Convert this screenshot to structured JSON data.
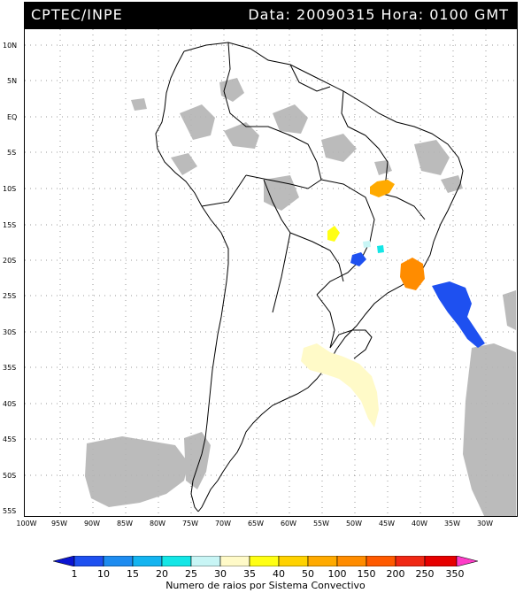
{
  "header": {
    "source": "CPTEC/INPE",
    "datetime": "Data: 20090315 Hora: 0100 GMT"
  },
  "map": {
    "lat_labels": [
      "10N",
      "5N",
      "EQ",
      "5S",
      "10S",
      "15S",
      "20S",
      "25S",
      "30S",
      "35S",
      "40S",
      "45S",
      "50S",
      "55S"
    ],
    "lon_labels": [
      "100W",
      "95W",
      "90W",
      "85W",
      "80W",
      "75W",
      "70W",
      "65W",
      "60W",
      "55W",
      "50W",
      "45W",
      "40W",
      "35W",
      "30W"
    ],
    "colors": {
      "cloud": "#b4b4b4",
      "coast": "#000000",
      "grid": "#9a9a9a"
    }
  },
  "colorbar": {
    "labels": [
      "1",
      "10",
      "15",
      "20",
      "25",
      "30",
      "35",
      "40",
      "50",
      "100",
      "150",
      "200",
      "250",
      "350"
    ],
    "colors": [
      "#0a14d2",
      "#1e50f0",
      "#1e8cf0",
      "#14b4f0",
      "#14e6e6",
      "#c8f5f5",
      "#fffac8",
      "#ffff14",
      "#ffd200",
      "#ffaa00",
      "#ff8c00",
      "#ff5a00",
      "#f02814",
      "#e60000",
      "#ff3cc8"
    ],
    "title": "Numero de raios por Sistema Convectivo"
  }
}
